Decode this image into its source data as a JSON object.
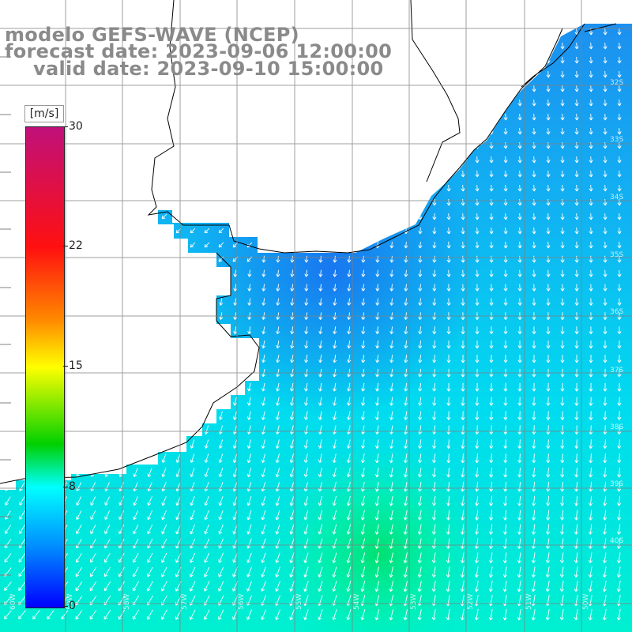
{
  "title": {
    "line1": "modelo GEFS-WAVE (NCEP)",
    "line2": "forecast date: 2023-09-06 12:00:00",
    "line3": "valid date: 2023-09-10 15:00:00"
  },
  "colorbar": {
    "unit": "[m/s]",
    "ticks": [
      "30",
      "22",
      "15",
      "8",
      "0"
    ],
    "min": 0,
    "max": 30,
    "colors": [
      "#0000ff",
      "#0090ff",
      "#00ffff",
      "#00d000",
      "#ffff00",
      "#ff8800",
      "#ff1010",
      "#c0107a"
    ]
  },
  "map": {
    "grid_lon_labels": [
      "60W",
      "59W",
      "58W",
      "57W",
      "56W",
      "55W",
      "54W",
      "53W",
      "52W",
      "51W",
      "50W"
    ],
    "grid_lat_labels": [
      "32S",
      "33S",
      "34S",
      "35S",
      "36S",
      "37S",
      "38S",
      "39S",
      "40S"
    ],
    "wind_direction": "northeast to southwest, curving south",
    "land_color": "#ffffff",
    "coast_color": "#000000",
    "grid_color": "#808080"
  }
}
